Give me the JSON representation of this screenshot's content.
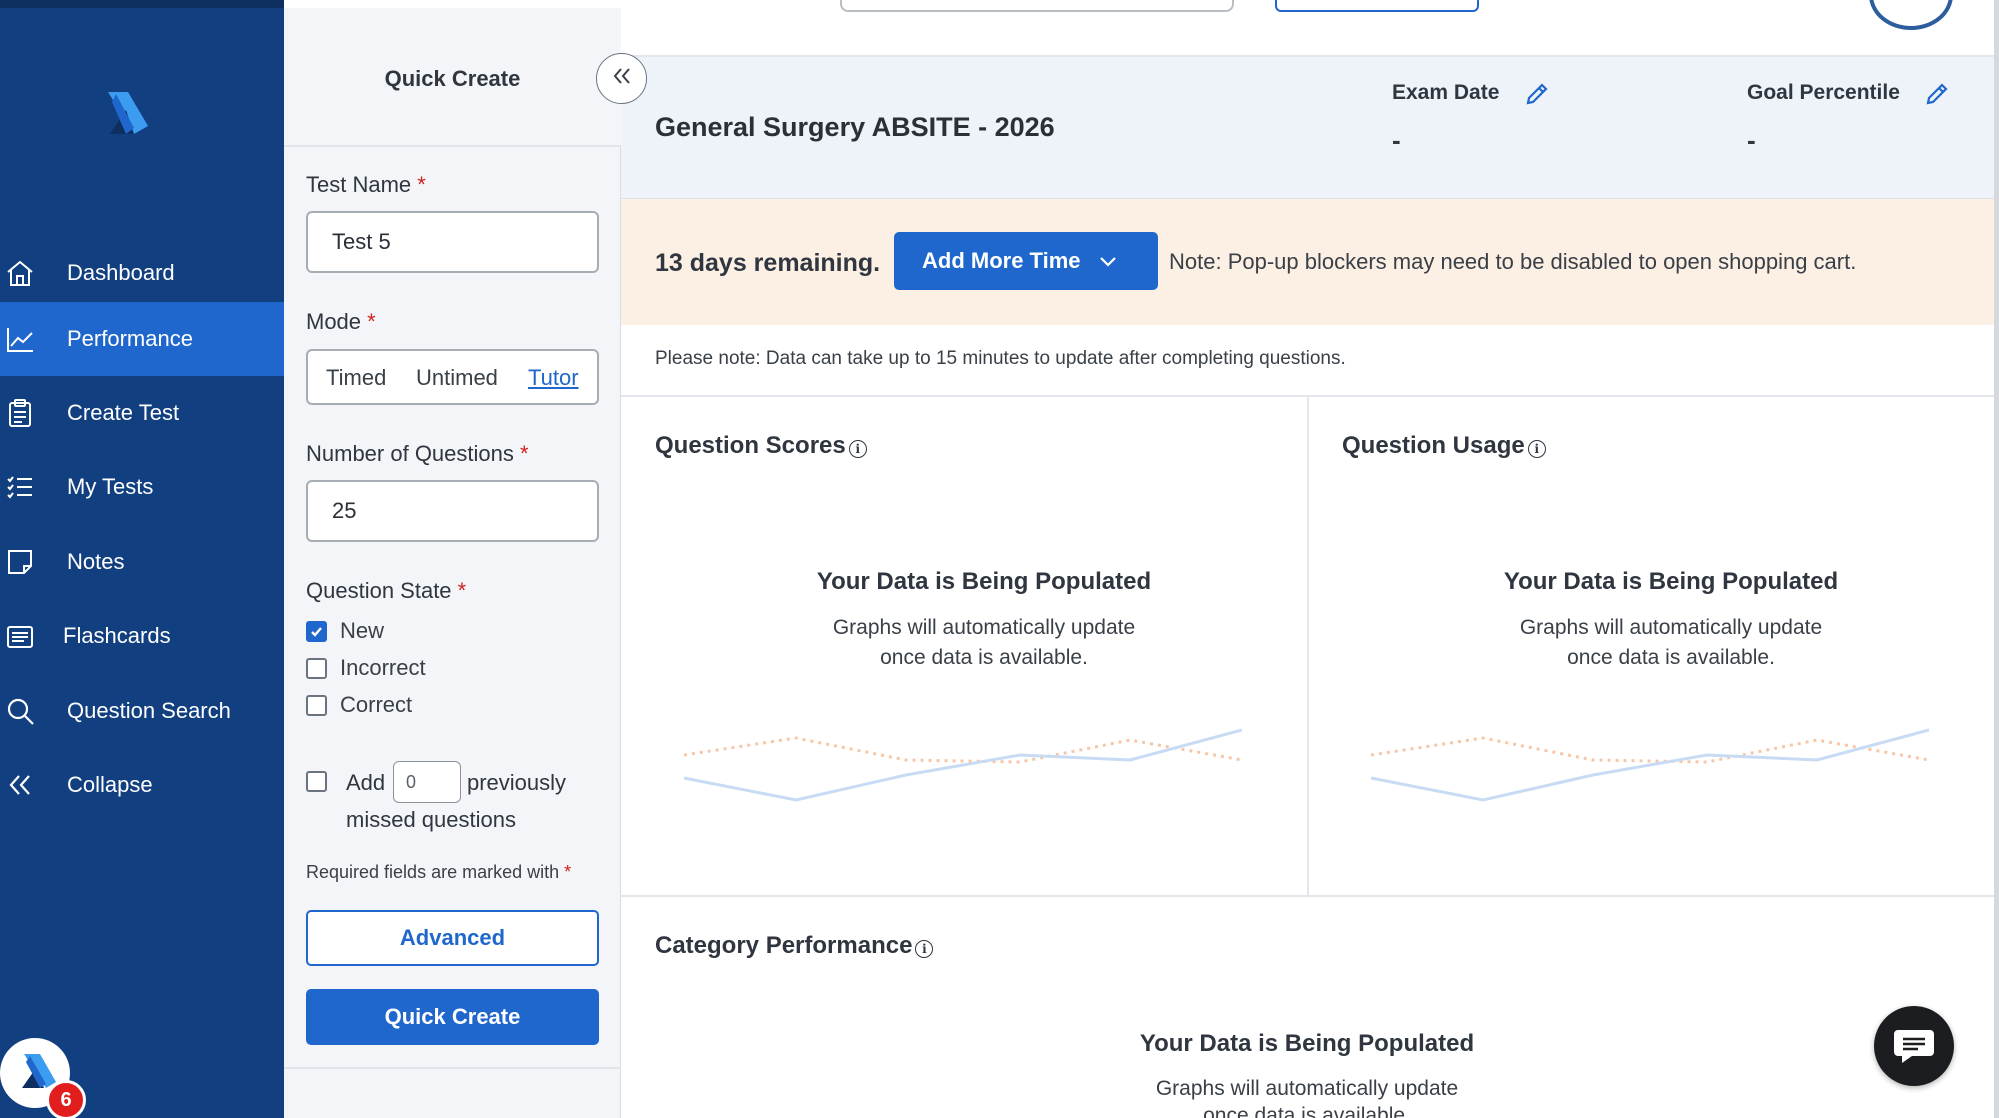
{
  "sidebar": {
    "items": [
      {
        "label": "Dashboard",
        "icon": "home-icon"
      },
      {
        "label": "Performance",
        "icon": "trend-chart-icon",
        "active": true
      },
      {
        "label": "Create Test",
        "icon": "clipboard-icon"
      },
      {
        "label": "My Tests",
        "icon": "checklist-icon"
      },
      {
        "label": "Notes",
        "icon": "note-icon"
      },
      {
        "label": "Flashcards",
        "icon": "cards-icon"
      },
      {
        "label": "Question Search",
        "icon": "search-icon"
      },
      {
        "label": "Collapse",
        "icon": "double-chevron-left-icon"
      }
    ],
    "notification_count": "6"
  },
  "quick_create": {
    "title": "Quick Create",
    "test_name_label": "Test Name",
    "test_name_value": "Test 5",
    "mode_label": "Mode",
    "modes": [
      "Timed",
      "Untimed",
      "Tutor"
    ],
    "selected_mode": "Tutor",
    "num_questions_label": "Number of Questions",
    "num_questions_value": "25",
    "question_state_label": "Question State",
    "states": [
      {
        "label": "New",
        "checked": true
      },
      {
        "label": "Incorrect",
        "checked": false
      },
      {
        "label": "Correct",
        "checked": false
      }
    ],
    "add_label": "Add",
    "missed_count": "0",
    "previously_label": "previously",
    "missed_label": "missed questions",
    "required_note": "Required fields are marked with",
    "required_marker": "*",
    "advanced_button": "Advanced",
    "create_button": "Quick Create"
  },
  "header": {
    "exam_title": "General Surgery ABSITE - 2026",
    "exam_date_label": "Exam Date",
    "exam_date_value": "-",
    "goal_label": "Goal Percentile",
    "goal_value": "-"
  },
  "banner": {
    "days_remaining": "13 days remaining.",
    "add_time_button": "Add More Time",
    "popup_note": "Note: Pop-up blockers may need to be disabled to open shopping cart."
  },
  "data_note": "Please note: Data can take up to 15 minutes to update after completing questions.",
  "cards": {
    "scores_title": "Question Scores",
    "usage_title": "Question Usage",
    "category_title": "Category Performance",
    "populating_title": "Your Data is Being Populated",
    "populating_line1": "Graphs will automatically update",
    "populating_line2": "once data is available."
  },
  "colors": {
    "sidebar": "#123f80",
    "active": "#1f67cc",
    "banner": "#fcefe3",
    "header": "#eef3f9"
  }
}
